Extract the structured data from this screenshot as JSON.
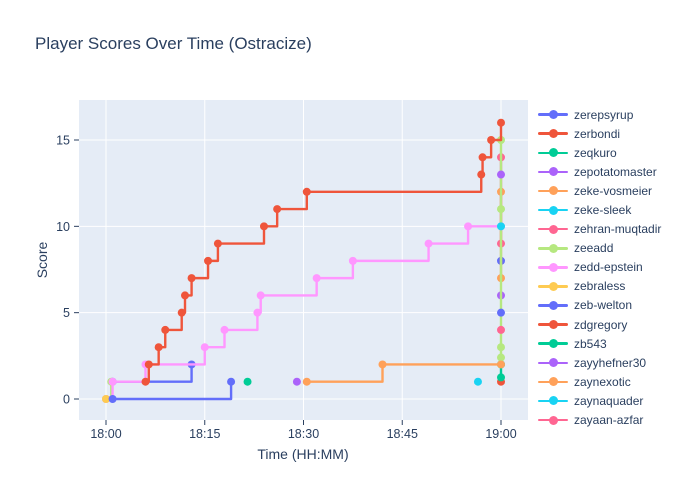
{
  "title": "Player Scores Over Time (Ostracize)",
  "colors": {
    "paper_bg": "#ffffff",
    "plot_bg": "#e5ecf6",
    "grid": "#ffffff",
    "text": "#2a3f5f"
  },
  "chart_data": {
    "type": "line",
    "title": "Player Scores Over Time (Ostracize)",
    "xlabel": "Time (HH:MM)",
    "ylabel": "Score",
    "line_shape": "hv",
    "grid": true,
    "legend_position": "right",
    "xlim_minutes": [
      -4,
      64
    ],
    "ylim": [
      -1.2,
      17.3
    ],
    "x_ticks": [
      {
        "label": "18:00",
        "t": 0
      },
      {
        "label": "18:15",
        "t": 15
      },
      {
        "label": "18:30",
        "t": 30
      },
      {
        "label": "18:45",
        "t": 45
      },
      {
        "label": "19:00",
        "t": 60
      }
    ],
    "y_ticks": [
      {
        "label": "0",
        "v": 0
      },
      {
        "label": "5",
        "v": 5
      },
      {
        "label": "10",
        "v": 10
      },
      {
        "label": "15",
        "v": 15
      }
    ],
    "series": [
      {
        "name": "zerepsyrup",
        "color": "#636EFA",
        "final_score": 8,
        "segments": [
          [
            [
              1,
              1
            ],
            [
              13,
              2
            ]
          ],
          [
            [
              60,
              8
            ]
          ]
        ]
      },
      {
        "name": "zerbondi",
        "color": "#EF553B",
        "final_score": 1,
        "segments": [
          [
            [
              60,
              1
            ]
          ]
        ]
      },
      {
        "name": "zeqkuro",
        "color": "#00CC96",
        "final_score": 2,
        "segments": [
          [
            [
              60,
              1.25
            ],
            [
              60,
              2
            ]
          ]
        ]
      },
      {
        "name": "zepotatomaster",
        "color": "#AB63FA",
        "final_score": 6,
        "segments": [
          [
            [
              29,
              1
            ]
          ],
          [
            [
              60,
              6
            ]
          ]
        ]
      },
      {
        "name": "zeke-vosmeier",
        "color": "#FFA15A",
        "final_score": 12,
        "segments": [
          [
            [
              60,
              7
            ],
            [
              60,
              12
            ]
          ]
        ]
      },
      {
        "name": "zeke-sleek",
        "color": "#19D3F3",
        "final_score": 1,
        "segments": [
          [
            [
              56.5,
              1
            ]
          ]
        ]
      },
      {
        "name": "zehran-muqtadir",
        "color": "#FF6692",
        "final_score": 14,
        "segments": [
          [
            [
              60,
              9
            ],
            [
              60,
              14
            ]
          ]
        ]
      },
      {
        "name": "zeeadd",
        "color": "#B6E880",
        "final_score": 15,
        "segments": [
          [
            [
              0,
              0
            ],
            [
              0.8,
              1
            ]
          ],
          [
            [
              60,
              2.4
            ],
            [
              60,
              3
            ],
            [
              60,
              11
            ],
            [
              60,
              15
            ]
          ]
        ]
      },
      {
        "name": "zedd-epstein",
        "color": "#FF97FF",
        "final_score": 10,
        "segments": [
          [
            [
              0,
              0
            ],
            [
              1,
              1
            ],
            [
              6,
              2
            ],
            [
              15,
              3
            ],
            [
              18,
              4
            ],
            [
              23,
              5
            ],
            [
              23.5,
              6
            ],
            [
              32,
              7
            ],
            [
              37.5,
              8
            ],
            [
              49,
              9
            ],
            [
              55,
              10
            ],
            [
              60,
              10
            ]
          ]
        ]
      },
      {
        "name": "zebraless",
        "color": "#FECB52",
        "final_score": 0,
        "segments": [
          [
            [
              0,
              0
            ]
          ]
        ]
      },
      {
        "name": "zeb-welton",
        "color": "#636EFA",
        "final_score": 5,
        "segments": [
          [
            [
              1,
              0
            ],
            [
              19,
              1
            ]
          ],
          [
            [
              60,
              5
            ]
          ]
        ]
      },
      {
        "name": "zdgregory",
        "color": "#EF553B",
        "final_score": 16,
        "segments": [
          [
            [
              6,
              1
            ],
            [
              6.5,
              2
            ],
            [
              8,
              3
            ],
            [
              9,
              4
            ],
            [
              11.5,
              5
            ],
            [
              12,
              6
            ],
            [
              13,
              7
            ],
            [
              15.5,
              8
            ],
            [
              17,
              9
            ],
            [
              24,
              10
            ],
            [
              26,
              11
            ],
            [
              30.5,
              12
            ],
            [
              57,
              13
            ],
            [
              57.2,
              14
            ],
            [
              58.5,
              15
            ],
            [
              60,
              16
            ]
          ]
        ]
      },
      {
        "name": "zb543",
        "color": "#00CC96",
        "final_score": 1,
        "segments": [
          [
            [
              21.5,
              1
            ]
          ]
        ]
      },
      {
        "name": "zayyhefner30",
        "color": "#AB63FA",
        "final_score": 13,
        "segments": [
          [
            [
              60,
              13
            ]
          ]
        ]
      },
      {
        "name": "zaynexotic",
        "color": "#FFA15A",
        "final_score": 2,
        "segments": [
          [
            [
              30.5,
              1
            ],
            [
              42,
              2
            ],
            [
              60,
              2
            ]
          ]
        ]
      },
      {
        "name": "zaynaquader",
        "color": "#19D3F3",
        "final_score": 10,
        "segments": [
          [
            [
              60,
              10
            ]
          ]
        ]
      },
      {
        "name": "zayaan-azfar",
        "color": "#FF6692",
        "final_score": 4,
        "segments": [
          [
            [
              60,
              4
            ]
          ]
        ]
      }
    ]
  }
}
